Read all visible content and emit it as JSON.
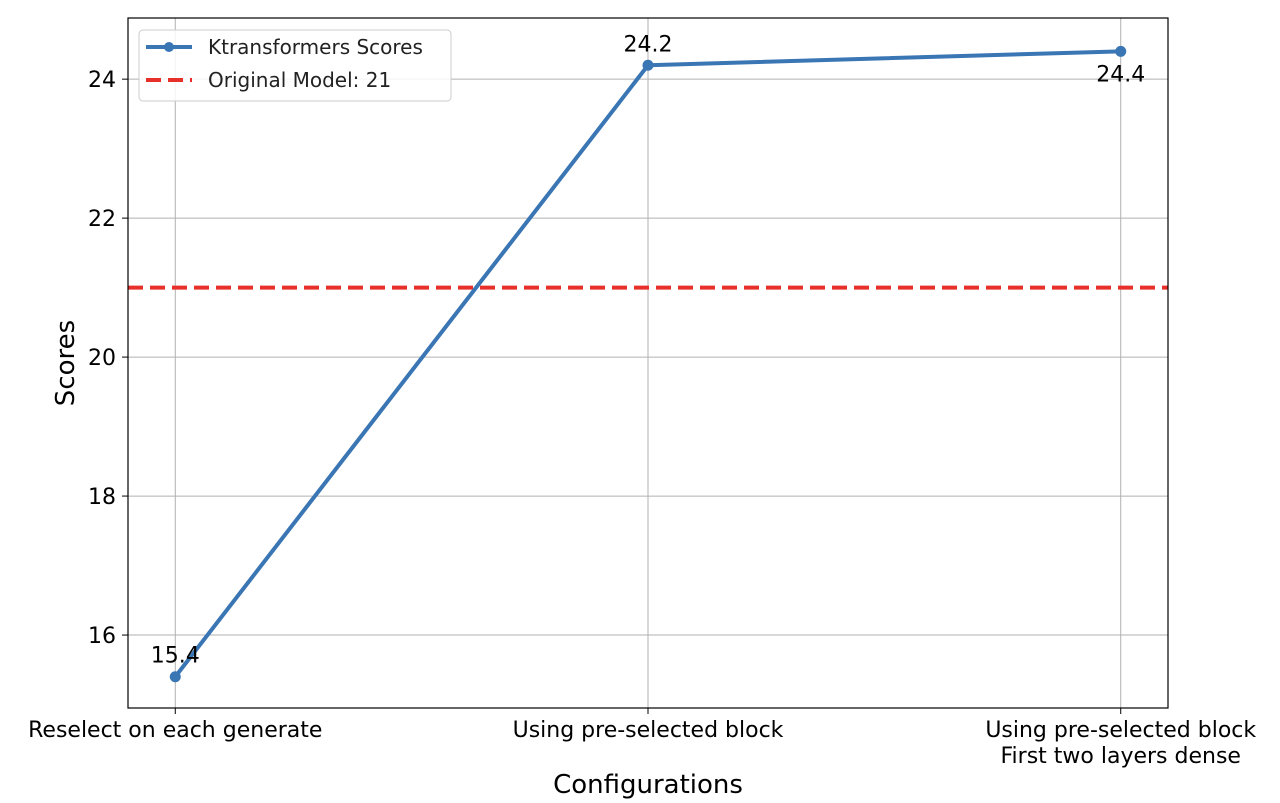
{
  "chart_data": {
    "type": "line",
    "title": "",
    "xlabel": "Configurations",
    "ylabel": "Scores",
    "categories": [
      [
        "Reselect on each generate"
      ],
      [
        "Using pre-selected block"
      ],
      [
        "Using pre-selected block",
        "First two layers dense"
      ]
    ],
    "series": [
      {
        "name": "Ktransformers Scores",
        "values": [
          15.4,
          24.2,
          24.4
        ],
        "color": "#3a75b4",
        "marker": "circle"
      }
    ],
    "data_labels": [
      "15.4",
      "24.2",
      "24.4"
    ],
    "reference_lines": [
      {
        "name": "Original Model: 21",
        "value": 21,
        "color": "#e8302a",
        "style": "dashed"
      }
    ],
    "yticks": [
      16,
      18,
      20,
      22,
      24
    ],
    "ylim": [
      14.95,
      24.88
    ],
    "grid": true,
    "legend": "top-left"
  }
}
